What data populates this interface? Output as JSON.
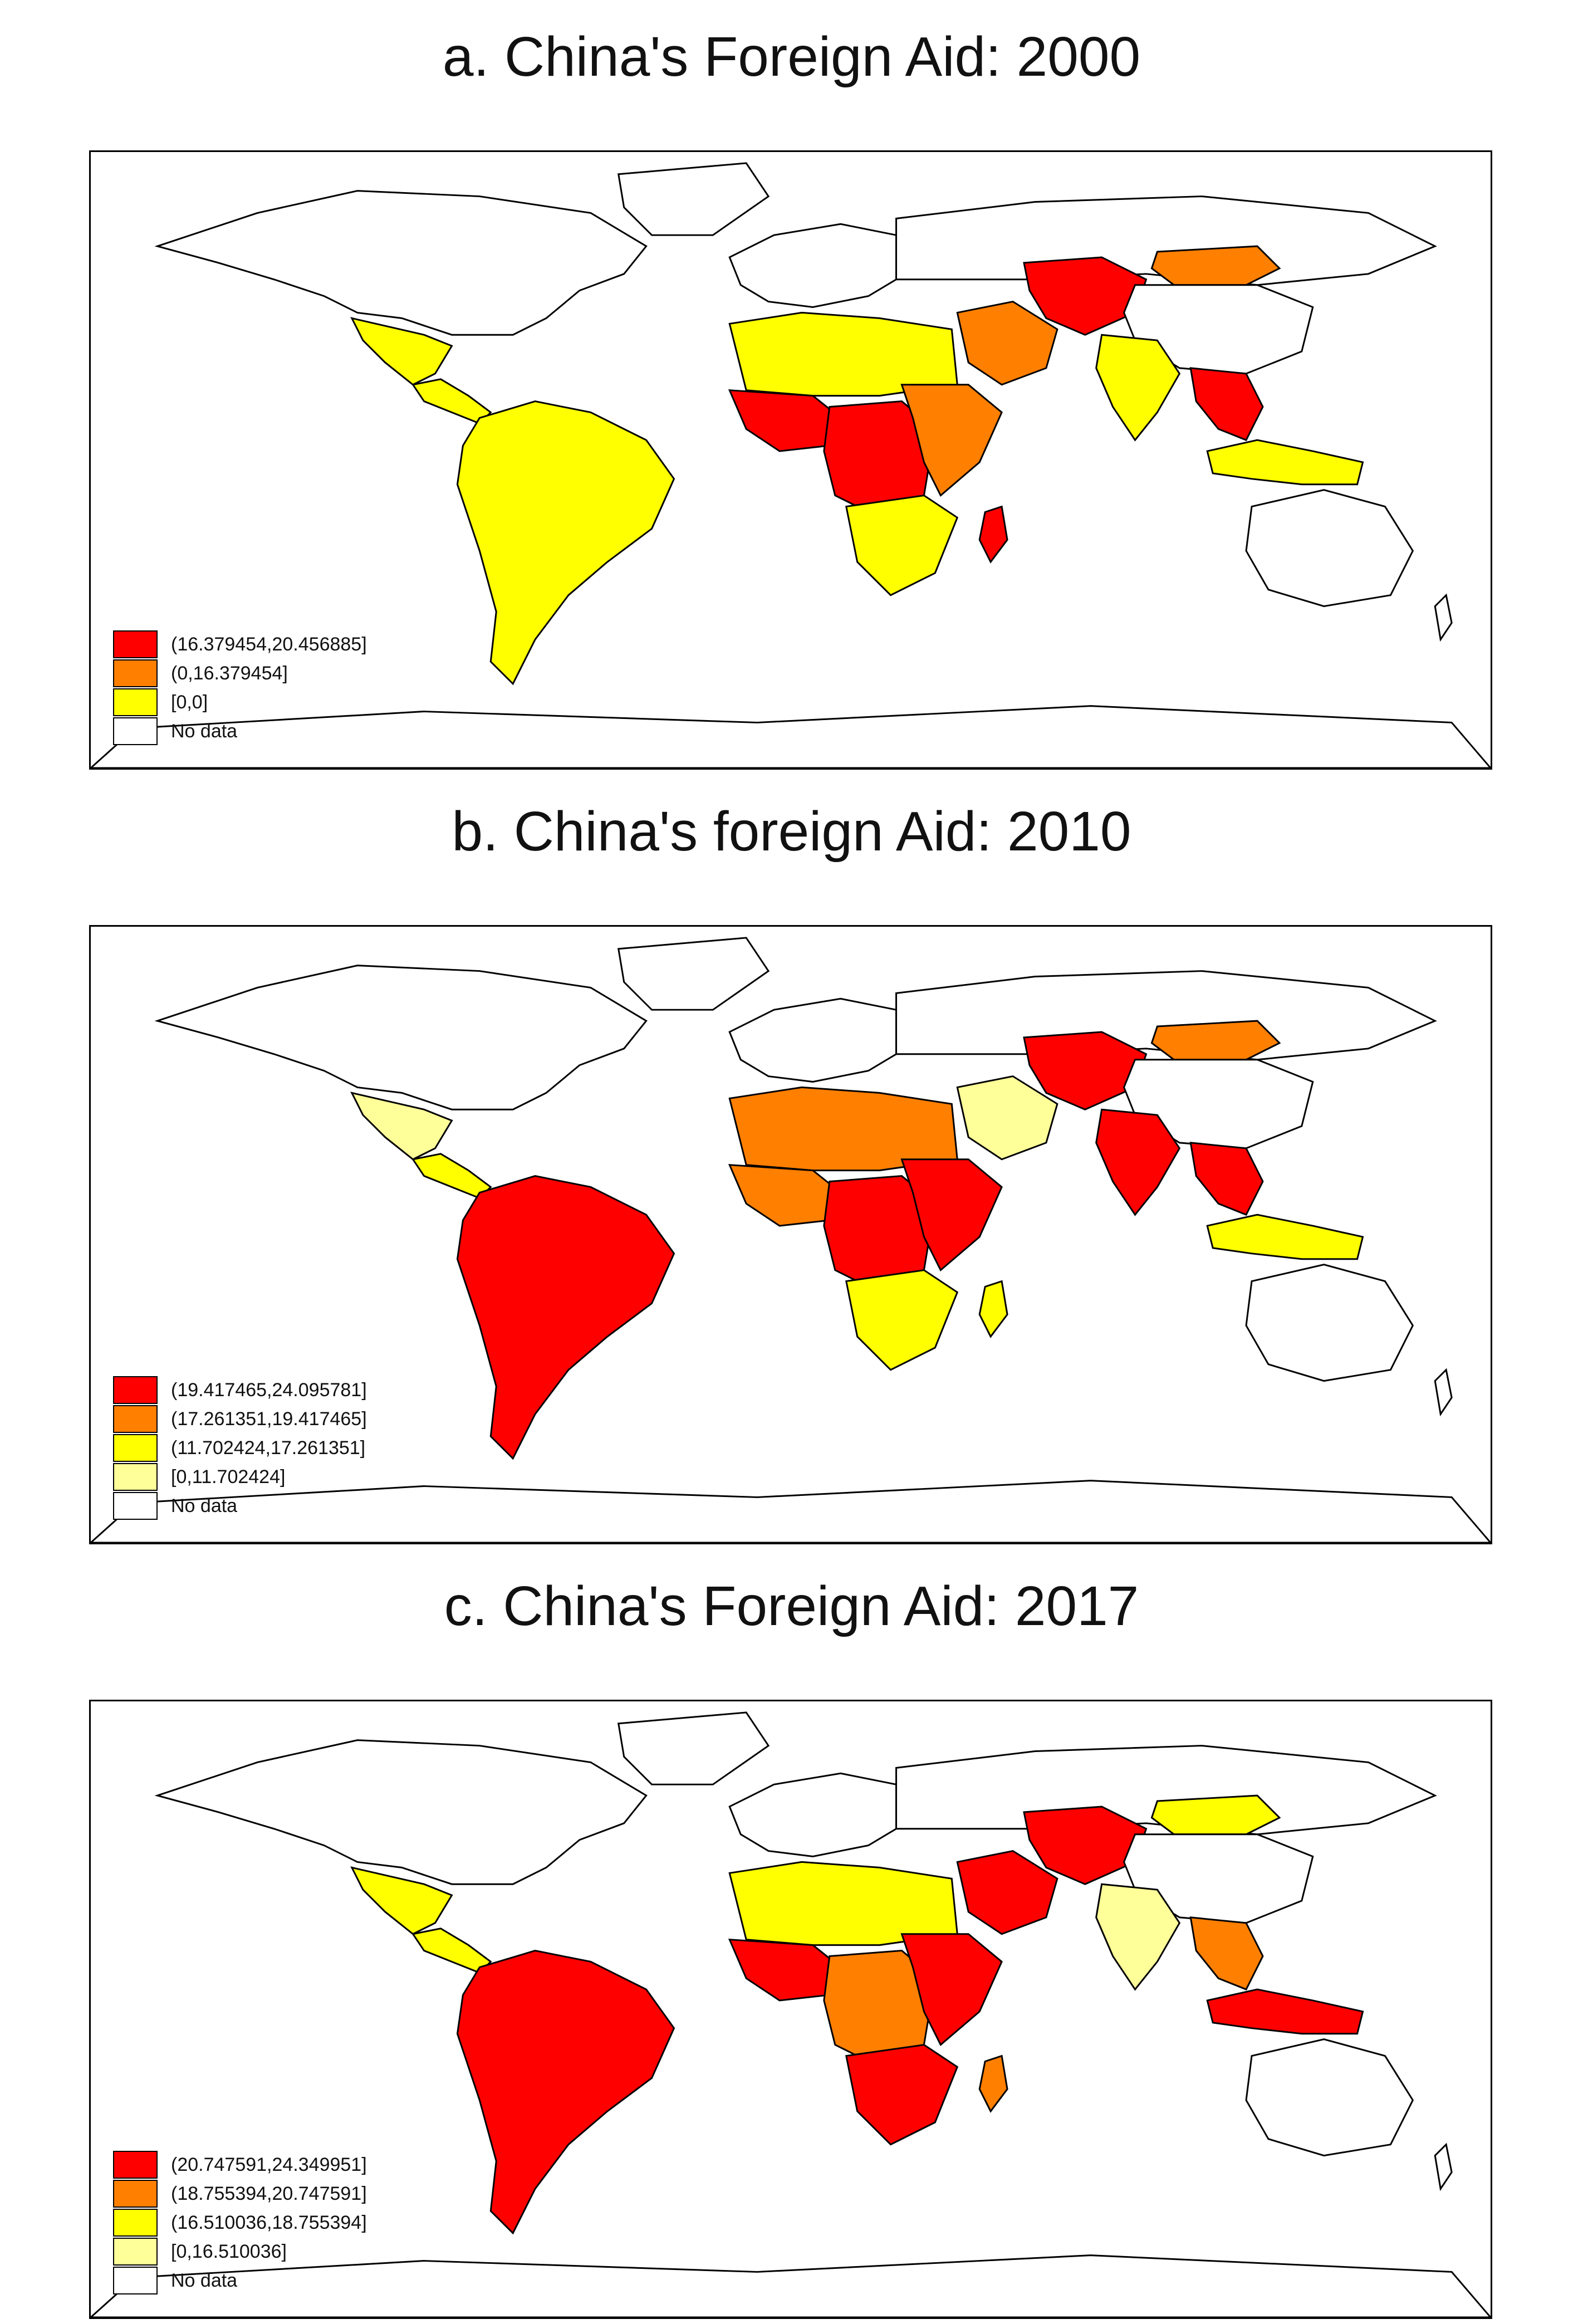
{
  "colors": {
    "red": "#FF0000",
    "orange": "#FF7F00",
    "yellow": "#FFFF00",
    "light_yellow": "#FFFF99",
    "no_data": "#FFFFFF",
    "border": "#000000"
  },
  "panels": [
    {
      "title": "a. China's Foreign Aid: 2000",
      "legend": [
        {
          "label": "(16.379454,20.456885]",
          "color": "#FF0000"
        },
        {
          "label": "(0,16.379454]",
          "color": "#FF7F00"
        },
        {
          "label": "[0,0]",
          "color": "#FFFF00"
        },
        {
          "label": "No data",
          "color": "#FFFFFF"
        }
      ],
      "regions": {
        "north_america": "#FFFFFF",
        "greenland": "#FFFFFF",
        "mexico": "#FFFF00",
        "central_america": "#FFFF00",
        "south_america": "#FFFF00",
        "europe": "#FFFFFF",
        "russia": "#FFFFFF",
        "north_africa": "#FFFF00",
        "west_africa": "#FF0000",
        "central_africa": "#FF0000",
        "east_africa": "#FF7F00",
        "southern_africa": "#FFFF00",
        "madagascar": "#FF0000",
        "middle_east": "#FF7F00",
        "central_asia": "#FF0000",
        "mongolia": "#FF7F00",
        "china": "#FFFFFF",
        "india": "#FFFF00",
        "southeast_asia": "#FF0000",
        "indonesia": "#FFFF00",
        "australia": "#FFFFFF"
      }
    },
    {
      "title": "b. China's foreign Aid: 2010",
      "legend": [
        {
          "label": "(19.417465,24.095781]",
          "color": "#FF0000"
        },
        {
          "label": "(17.261351,19.417465]",
          "color": "#FF7F00"
        },
        {
          "label": "(11.702424,17.261351]",
          "color": "#FFFF00"
        },
        {
          "label": "[0,11.702424]",
          "color": "#FFFF99"
        },
        {
          "label": "No data",
          "color": "#FFFFFF"
        }
      ],
      "regions": {
        "north_america": "#FFFFFF",
        "greenland": "#FFFFFF",
        "mexico": "#FFFF99",
        "central_america": "#FFFF00",
        "south_america": "#FF0000",
        "europe": "#FFFFFF",
        "russia": "#FFFFFF",
        "north_africa": "#FF7F00",
        "west_africa": "#FF7F00",
        "central_africa": "#FF0000",
        "east_africa": "#FF0000",
        "southern_africa": "#FFFF00",
        "madagascar": "#FFFF00",
        "middle_east": "#FFFF99",
        "central_asia": "#FF0000",
        "mongolia": "#FF7F00",
        "china": "#FFFFFF",
        "india": "#FF0000",
        "southeast_asia": "#FF0000",
        "indonesia": "#FFFF00",
        "australia": "#FFFFFF"
      }
    },
    {
      "title": "c. China's Foreign Aid: 2017",
      "legend": [
        {
          "label": "(20.747591,24.349951]",
          "color": "#FF0000"
        },
        {
          "label": "(18.755394,20.747591]",
          "color": "#FF7F00"
        },
        {
          "label": "(16.510036,18.755394]",
          "color": "#FFFF00"
        },
        {
          "label": "[0,16.510036]",
          "color": "#FFFF99"
        },
        {
          "label": "No data",
          "color": "#FFFFFF"
        }
      ],
      "regions": {
        "north_america": "#FFFFFF",
        "greenland": "#FFFFFF",
        "mexico": "#FFFF00",
        "central_america": "#FFFF00",
        "south_america": "#FF0000",
        "europe": "#FFFFFF",
        "russia": "#FFFFFF",
        "north_africa": "#FFFF00",
        "west_africa": "#FF0000",
        "central_africa": "#FF7F00",
        "east_africa": "#FF0000",
        "southern_africa": "#FF0000",
        "madagascar": "#FF7F00",
        "middle_east": "#FF0000",
        "central_asia": "#FF0000",
        "mongolia": "#FFFF00",
        "china": "#FFFFFF",
        "india": "#FFFF99",
        "southeast_asia": "#FF7F00",
        "indonesia": "#FF0000",
        "australia": "#FFFFFF"
      }
    }
  ]
}
